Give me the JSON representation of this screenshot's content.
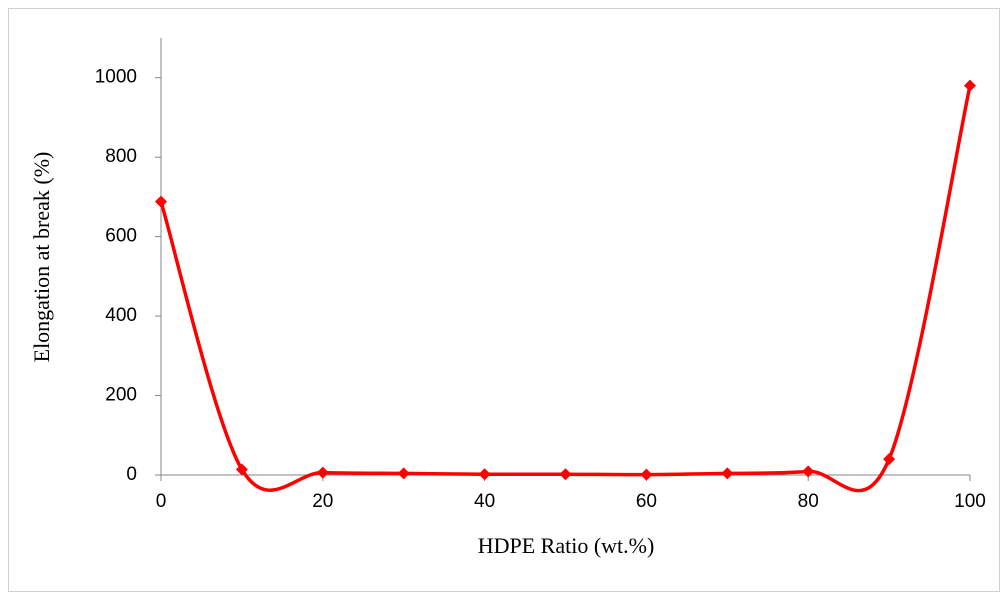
{
  "chart_data": {
    "type": "line",
    "x_label": "HDPE Ratio (wt.%)",
    "y_label": "Elongation at break (%)",
    "x": [
      0,
      10,
      20,
      30,
      40,
      50,
      60,
      70,
      80,
      90,
      100
    ],
    "values": [
      688,
      14,
      6,
      4,
      2,
      2,
      1,
      4,
      9,
      40,
      980
    ],
    "color": "#ff0000",
    "smooth": true,
    "marker": "diamond",
    "xlim": [
      0,
      100
    ],
    "xticks": [
      0,
      20,
      40,
      60,
      80,
      100
    ],
    "ylim": [
      0,
      1100
    ],
    "yticks": [
      0,
      200,
      400,
      600,
      800,
      1000
    ],
    "grid": false
  }
}
